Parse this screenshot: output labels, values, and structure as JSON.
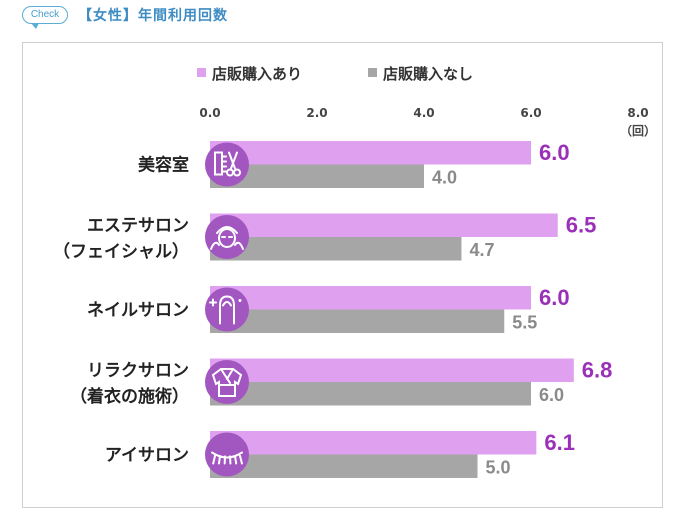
{
  "header": {
    "badge": "Check",
    "title": "【女性】年間利用回数"
  },
  "chart_data": {
    "type": "bar",
    "orientation": "horizontal",
    "categories": [
      "美容室",
      "エステサロン（フェイシャル）",
      "ネイルサロン",
      "リラクサロン（着衣の施術）",
      "アイサロン"
    ],
    "category_lines": [
      [
        "美容室"
      ],
      [
        "エステサロン",
        "（フェイシャル）"
      ],
      [
        "ネイルサロン"
      ],
      [
        "リラクサロン",
        "（着衣の施術）"
      ],
      [
        "アイサロン"
      ]
    ],
    "category_icons": [
      "comb-scissors-icon",
      "facial-mask-icon",
      "nail-icon",
      "robe-icon",
      "eyelash-icon"
    ],
    "series": [
      {
        "name": "店販購入あり",
        "values": [
          6.0,
          6.5,
          6.0,
          6.8,
          6.1
        ],
        "labels": [
          "6.0",
          "6.5",
          "6.0",
          "6.8",
          "6.1"
        ],
        "color": "#e0a0f0",
        "label_color": "#9b30b8"
      },
      {
        "name": "店販購入なし",
        "values": [
          4.0,
          4.7,
          5.5,
          6.0,
          5.0
        ],
        "labels": [
          "4.0",
          "4.7",
          "5.5",
          "6.0",
          "5.0"
        ],
        "color": "#a6a6a6",
        "label_color": "#8a8a8a"
      }
    ],
    "xlim": [
      0,
      8
    ],
    "ticks": [
      0,
      2,
      4,
      6,
      8
    ],
    "tick_labels": [
      "0.0",
      "2.0",
      "4.0",
      "6.0",
      "8.0"
    ],
    "unit_label": "（回）",
    "legend_position": "top",
    "grid": false,
    "icon_color": "#a256c0"
  }
}
